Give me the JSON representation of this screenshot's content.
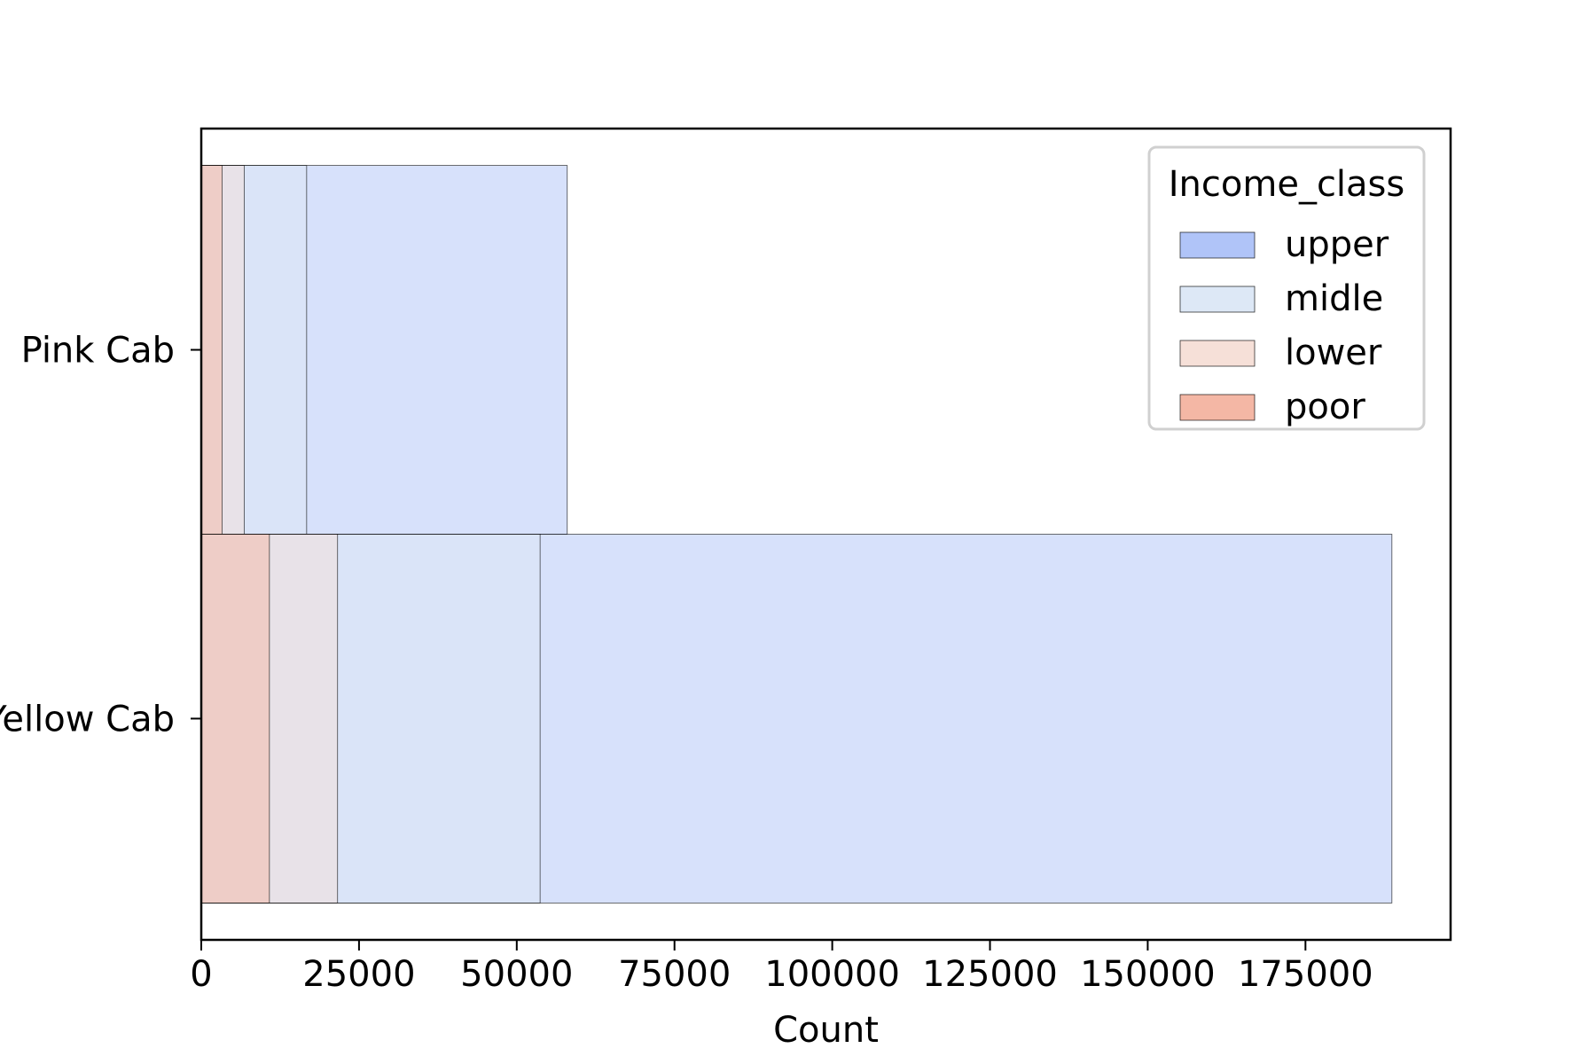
{
  "chart_data": {
    "type": "bar",
    "orientation": "horizontal",
    "layering": "overlaid (each category drawn as nested semi-transparent bars)",
    "categories": [
      "Pink Cab",
      "Yellow Cab"
    ],
    "series": [
      {
        "name": "upper",
        "color": "#b0c4f8",
        "values": [
          58000,
          188700
        ]
      },
      {
        "name": "midle",
        "color": "#dde8f6",
        "values": [
          16700,
          53700
        ]
      },
      {
        "name": "lower",
        "color": "#f6e0d8",
        "values": [
          6800,
          21600
        ]
      },
      {
        "name": "poor",
        "color": "#f4b7a5",
        "values": [
          3300,
          10800
        ]
      }
    ],
    "xlabel": "Count",
    "ylabel": "",
    "title": "",
    "xlim": [
      0,
      198000
    ],
    "xticks": [
      0,
      25000,
      50000,
      75000,
      100000,
      125000,
      150000,
      175000
    ],
    "xtick_labels": [
      "0",
      "25000",
      "50000",
      "75000",
      "100000",
      "125000",
      "150000",
      "175000"
    ],
    "grid": false,
    "legend": {
      "title": "Income_class",
      "placement": "top-right",
      "entries": [
        {
          "label": "upper",
          "color": "#b0c4f8"
        },
        {
          "label": "midle",
          "color": "#dde8f6"
        },
        {
          "label": "lower",
          "color": "#f6e0d8"
        },
        {
          "label": "poor",
          "color": "#f4b7a5"
        }
      ]
    }
  }
}
